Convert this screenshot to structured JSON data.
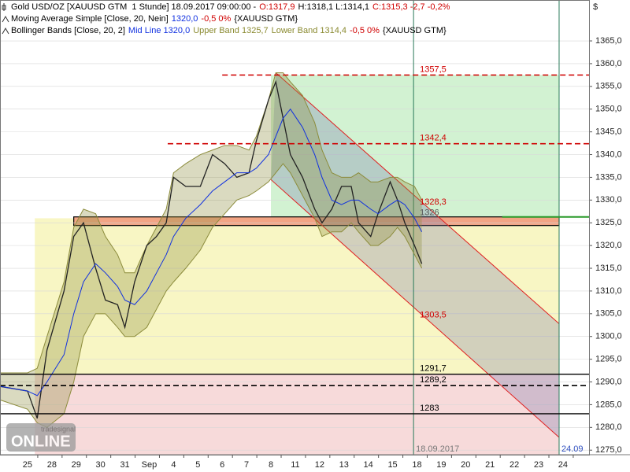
{
  "chart_data": {
    "type": "line",
    "legend": [
      {
        "parts": [
          {
            "text": "Gold USD/OZ [XAUUSD GTM  1 Stunde] 18.09.2017 09:00:00 -",
            "color": "#000000"
          },
          {
            "text": "O:1317,9",
            "color": "#d00000"
          },
          {
            "text": "H:1318,1 L:1314,1",
            "color": "#000000"
          },
          {
            "text": "C:1315,3 -2,7 -0,2%",
            "color": "#d00000"
          }
        ]
      },
      {
        "parts": [
          {
            "text": "Moving Average Simple [Close, 20, Nein]",
            "color": "#000000"
          },
          {
            "text": "1320,0",
            "color": "#1030e0"
          },
          {
            "text": "-0,5 0%",
            "color": "#d00000"
          },
          {
            "text": "{XAUUSD GTM}",
            "color": "#000000"
          }
        ]
      },
      {
        "parts": [
          {
            "text": "Bollinger Bands [Close, 20, 2]",
            "color": "#000000"
          },
          {
            "text": "Mid Line 1320,0",
            "color": "#1030e0"
          },
          {
            "text": "Upper Band 1325,7",
            "color": "#8a8a30"
          },
          {
            "text": "Lower Band 1314,4",
            "color": "#8a8a30"
          },
          {
            "text": "-0,5 0%",
            "color": "#d00000"
          },
          {
            "text": "{XAUUSD GTM}",
            "color": "#000000"
          }
        ]
      }
    ],
    "y_unit": "$",
    "x": [
      -1.1,
      0,
      0.4,
      0.8,
      1.5,
      1.9,
      2.3,
      2.8,
      3.2,
      3.7,
      4.0,
      4.4,
      4.9,
      5.3,
      5.7,
      6.0,
      6.5,
      7.1,
      7.6,
      8.1,
      8.6,
      9.1,
      9.4,
      9.9,
      10.2,
      10.5,
      10.8,
      11.3,
      11.8,
      12.1,
      12.5,
      12.9,
      13.3,
      13.6,
      14.1,
      14.4,
      14.9,
      15.2,
      15.5,
      15.9,
      16.2
    ],
    "series": [
      {
        "color": "#222222",
        "values": [
          1289,
          1288,
          1282,
          1297,
          1310,
          1322,
          1325,
          1315,
          1308,
          1307,
          1302,
          1312,
          1320,
          1322,
          1325,
          1335,
          1333,
          1333,
          1340,
          1338,
          1335,
          1336,
          1343,
          1352,
          1356,
          1348,
          1340,
          1335,
          1328,
          1325,
          1328,
          1333,
          1333,
          1325,
          1322,
          1327,
          1334,
          1330,
          1325,
          1320,
          1316
        ]
      },
      {
        "color": "#1030e0",
        "values": [
          1289,
          1288,
          1287,
          1290,
          1296,
          1305,
          1312,
          1316,
          1314,
          1311,
          1308,
          1307,
          1310,
          1314,
          1318,
          1322,
          1326,
          1329,
          1332,
          1334,
          1336,
          1336,
          1337,
          1340,
          1344,
          1348,
          1350,
          1346,
          1340,
          1335,
          1330,
          1329,
          1330,
          1330,
          1328,
          1327,
          1329,
          1330,
          1329,
          1326,
          1323
        ]
      }
    ],
    "bands": {
      "fill": "rgba(140,140,60,0.32)",
      "stroke": "#8c8c3c",
      "upper": [
        1292,
        1292,
        1293,
        1300,
        1312,
        1324,
        1328,
        1327,
        1322,
        1318,
        1314,
        1314,
        1320,
        1324,
        1328,
        1336,
        1338,
        1340,
        1341,
        1342,
        1342,
        1341,
        1344,
        1352,
        1358,
        1358,
        1356,
        1353,
        1347,
        1341,
        1336,
        1335,
        1335,
        1336,
        1334,
        1334,
        1335,
        1335,
        1334,
        1333,
        1330
      ],
      "lower": [
        1286,
        1284,
        1281,
        1280,
        1283,
        1290,
        1300,
        1305,
        1305,
        1302,
        1300,
        1300,
        1302,
        1306,
        1310,
        1312,
        1315,
        1319,
        1324,
        1327,
        1330,
        1331,
        1332,
        1334,
        1336,
        1338,
        1336,
        1331,
        1326,
        1322,
        1323,
        1323,
        1325,
        1323,
        1320,
        1320,
        1322,
        1324,
        1322,
        1318,
        1315
      ]
    },
    "xlim": [
      -1.13,
      23.07
    ],
    "ylim": [
      1274,
      1374
    ],
    "xticks": [
      {
        "value": 0,
        "label": "25"
      },
      {
        "value": 1,
        "label": "28"
      },
      {
        "value": 2,
        "label": "29"
      },
      {
        "value": 3,
        "label": "30"
      },
      {
        "value": 4,
        "label": "31"
      },
      {
        "value": 5,
        "label": "Sep"
      },
      {
        "value": 6,
        "label": "4"
      },
      {
        "value": 7,
        "label": "5"
      },
      {
        "value": 8,
        "label": "6"
      },
      {
        "value": 9,
        "label": "7"
      },
      {
        "value": 10,
        "label": "8"
      },
      {
        "value": 11,
        "label": "11"
      },
      {
        "value": 12,
        "label": "12"
      },
      {
        "value": 13,
        "label": "13"
      },
      {
        "value": 14,
        "label": "14"
      },
      {
        "value": 15,
        "label": "15"
      },
      {
        "value": 16,
        "label": "18"
      },
      {
        "value": 17,
        "label": "19"
      },
      {
        "value": 18,
        "label": "20"
      },
      {
        "value": 19,
        "label": "21"
      },
      {
        "value": 20,
        "label": "22"
      },
      {
        "value": 21,
        "label": "23"
      },
      {
        "value": 22,
        "label": "24"
      }
    ],
    "yticks": [
      {
        "value": 1275,
        "label": "1275,0"
      },
      {
        "value": 1280,
        "label": "1280,0"
      },
      {
        "value": 1285,
        "label": "1285,0"
      },
      {
        "value": 1290,
        "label": "1290,0"
      },
      {
        "value": 1295,
        "label": "1295,0"
      },
      {
        "value": 1300,
        "label": "1300,0"
      },
      {
        "value": 1305,
        "label": "1305,0"
      },
      {
        "value": 1310,
        "label": "1310,0"
      },
      {
        "value": 1315,
        "label": "1315,0"
      },
      {
        "value": 1320,
        "label": "1320,0"
      },
      {
        "value": 1325,
        "label": "1325,0"
      },
      {
        "value": 1330,
        "label": "1330,0"
      },
      {
        "value": 1335,
        "label": "1335,0"
      },
      {
        "value": 1340,
        "label": "1340,0"
      },
      {
        "value": 1345,
        "label": "1345,0"
      },
      {
        "value": 1350,
        "label": "1350,0"
      },
      {
        "value": 1355,
        "label": "1355,0"
      },
      {
        "value": 1360,
        "label": "1360,0"
      },
      {
        "value": 1365,
        "label": "1365,0"
      }
    ],
    "grid": true,
    "zones": [
      {
        "x": [
          10.0,
          21.84
        ],
        "y": [
          1326,
          1357.5
        ],
        "color": "#d2f2d2"
      },
      {
        "x": [
          0.3,
          21.84
        ],
        "y": [
          1291.7,
          1326
        ],
        "color": "#f8f6c4"
      },
      {
        "x": [
          0.3,
          21.84
        ],
        "y": [
          1274,
          1291.7
        ],
        "color": "#f7dada"
      },
      {
        "x": [
          1.9,
          21.84
        ],
        "y": [
          1324.4,
          1326.3
        ],
        "color": "#f2a484",
        "stroke": "#000000"
      }
    ],
    "channel": {
      "fill": "rgba(110,110,170,0.28)",
      "color": "#e02020",
      "upper": {
        "x": [
          10.2,
          21.84
        ],
        "values": [
          1358,
          1302.8
        ]
      },
      "lower": {
        "x": [
          10.0,
          21.84
        ],
        "values": [
          1334.5,
          1277.8
        ]
      }
    },
    "trend_line": {
      "x": [
        19.5,
        23.07
      ],
      "value": 1326.3,
      "color": "#2a9a2a"
    },
    "levels": [
      {
        "value": 1357.5,
        "label": "1357,5",
        "color": "#d00000",
        "dash": true,
        "from": 8.0
      },
      {
        "value": 1342.4,
        "label": "1342,4",
        "color": "#d00000",
        "dash": true,
        "from": 5.76
      },
      {
        "value": 1291.7,
        "label": "1291,7",
        "color": "#000000",
        "dash": false
      },
      {
        "value": 1289.2,
        "label": "1289,2",
        "color": "#000000",
        "dash": true
      },
      {
        "value": 1283,
        "color": "#000000",
        "dash": false
      }
    ],
    "annotations": [
      {
        "x": 15.86,
        "value": 1328.3,
        "label": "1328,3",
        "color": "#d00000"
      },
      {
        "x": 15.86,
        "value": 1326,
        "color": "#555555"
      },
      {
        "x": 15.86,
        "value": 1303.5,
        "label": "1303,5",
        "color": "#d00000"
      }
    ],
    "markers": [
      {
        "x": 15.86,
        "label": "18.09.2017",
        "color": "#2a7a5a",
        "text_color": "#777777"
      },
      {
        "x": 21.84,
        "label": "24.09",
        "color": "#2a7a5a",
        "text_color": "#3050c0"
      }
    ],
    "watermark": {
      "brand": "tradesignal",
      "name": "ONLINE"
    }
  }
}
